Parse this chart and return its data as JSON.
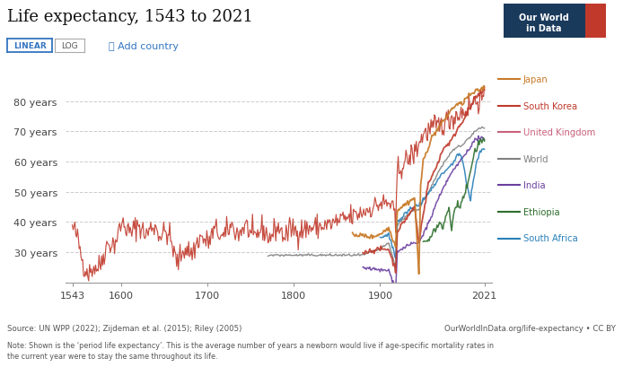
{
  "title": "Life expectancy, 1543 to 2021",
  "source_text": "Source: UN WPP (2022); Zijdeman et al. (2015); Riley (2005)",
  "url_text": "OurWorldInData.org/life-expectancy • CC BY",
  "note_text": "Note: Shown is the ‘period life expectancy’. This is the average number of years a newborn would live if age-specific mortality rates in\nthe current year were to stay the same throughout its life.",
  "ytick_vals": [
    30,
    40,
    50,
    60,
    70,
    80
  ],
  "ytick_labels": [
    "30 years",
    "40 years",
    "50 years",
    "60 years",
    "70 years",
    "80 years"
  ],
  "xticks": [
    1543,
    1600,
    1700,
    1800,
    1900,
    2021
  ],
  "xlim": [
    1535,
    2030
  ],
  "ylim": [
    20,
    90
  ],
  "colors": {
    "uk": "#c0392b",
    "japan": "#c97b2a",
    "south_korea": "#c0392b",
    "world": "#818181",
    "india": "#6b3fa0",
    "ethiopia": "#2d6e2d",
    "south_africa": "#2980b9"
  },
  "legend": [
    {
      "label": "Japan",
      "color": "#c97b2a"
    },
    {
      "label": "South Korea",
      "color": "#c0392b"
    },
    {
      "label": "United Kingdom",
      "color": "#c0392b"
    },
    {
      "label": "World",
      "color": "#818181"
    },
    {
      "label": "India",
      "color": "#6b3fa0"
    },
    {
      "label": "Ethiopia",
      "color": "#2d6e2d"
    },
    {
      "label": "South Africa",
      "color": "#2980b9"
    }
  ]
}
